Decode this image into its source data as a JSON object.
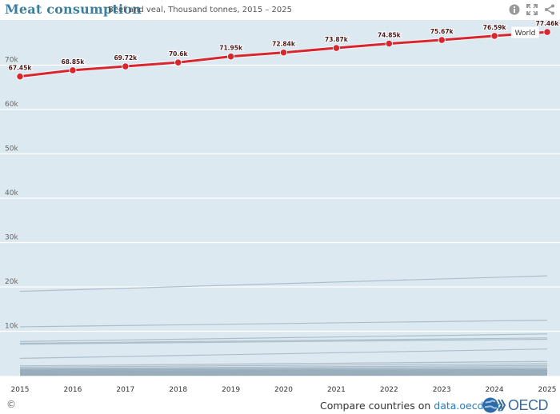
{
  "header": {
    "title": "Meat consumption",
    "subtitle": "Beef and veal, Thousand tonnes, 2015 – 2025",
    "icons": [
      "info-icon",
      "fullscreen-icon",
      "share-icon"
    ]
  },
  "footer": {
    "copyright": "©",
    "compare_prefix": "Compare countries on ",
    "compare_link": "data.oecd.org",
    "logo_text": "OECD"
  },
  "colors": {
    "plot_bg": "#dde9f1",
    "highlight": "#d8262f",
    "background_series": "#9fb3c1",
    "title": "#3a7f9e",
    "link": "#2a7bb5"
  },
  "chart_data": {
    "type": "line",
    "title": "Meat consumption",
    "subtitle": "Beef and veal, Thousand tonnes, 2015 – 2025",
    "xlabel": "",
    "ylabel": "",
    "x": [
      2015,
      2016,
      2017,
      2018,
      2019,
      2020,
      2021,
      2022,
      2023,
      2024,
      2025
    ],
    "ylim": [
      0,
      80000
    ],
    "yticks": [
      10000,
      20000,
      30000,
      40000,
      50000,
      60000,
      70000
    ],
    "ytick_labels": [
      "10k",
      "20k",
      "30k",
      "40k",
      "50k",
      "60k",
      "70k"
    ],
    "grid": true,
    "highlight_series": {
      "name": "World",
      "values": [
        67450,
        68850,
        69720,
        70600,
        71950,
        72840,
        73870,
        74850,
        75670,
        76590,
        77460
      ],
      "labels": [
        "67.45k",
        "68.85k",
        "69.72k",
        "70.6k",
        "71.95k",
        "72.84k",
        "73.87k",
        "74.85k",
        "75.67k",
        "76.59k",
        "77.46k"
      ]
    },
    "background_series": [
      {
        "start": 19000,
        "end": 22500
      },
      {
        "start": 11000,
        "end": 12500
      },
      {
        "start": 7700,
        "end": 9400
      },
      {
        "start": 7300,
        "end": 8500
      },
      {
        "start": 7100,
        "end": 8200
      },
      {
        "start": 3900,
        "end": 6000
      },
      {
        "start": 2200,
        "end": 3200
      },
      {
        "start": 1900,
        "end": 2700
      },
      {
        "start": 1600,
        "end": 2300
      },
      {
        "start": 1400,
        "end": 2000
      },
      {
        "start": 1200,
        "end": 1700
      },
      {
        "start": 1000,
        "end": 1400
      },
      {
        "start": 850,
        "end": 1200
      },
      {
        "start": 700,
        "end": 1000
      },
      {
        "start": 550,
        "end": 800
      },
      {
        "start": 400,
        "end": 600
      },
      {
        "start": 300,
        "end": 450
      },
      {
        "start": 200,
        "end": 300
      },
      {
        "start": 100,
        "end": 150
      },
      {
        "start": 50,
        "end": 80
      }
    ],
    "legend": "inline-label-top-right"
  }
}
